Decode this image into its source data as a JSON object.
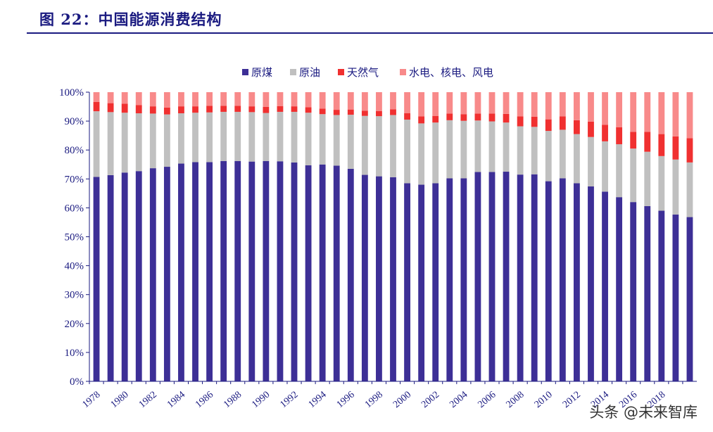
{
  "header": {
    "title": "图 22：中国能源消费结构"
  },
  "watermark": "头条 @未来智库",
  "chart_data": {
    "type": "bar",
    "stacked": true,
    "title": "",
    "xlabel": "",
    "ylabel": "",
    "ylim": [
      0,
      100
    ],
    "y_ticks": [
      "0%",
      "10%",
      "20%",
      "30%",
      "40%",
      "50%",
      "60%",
      "70%",
      "80%",
      "90%",
      "100%"
    ],
    "x_ticks": [
      "1978",
      "1980",
      "1982",
      "1984",
      "1986",
      "1988",
      "1990",
      "1992",
      "1994",
      "1996",
      "1998",
      "2000",
      "2002",
      "2004",
      "2006",
      "2008",
      "2010",
      "2012",
      "2014",
      "2016",
      "2018"
    ],
    "legend_position": "top",
    "categories": [
      "1978",
      "1979",
      "1980",
      "1981",
      "1982",
      "1983",
      "1984",
      "1985",
      "1986",
      "1987",
      "1988",
      "1989",
      "1990",
      "1991",
      "1992",
      "1993",
      "1994",
      "1995",
      "1996",
      "1997",
      "1998",
      "1999",
      "2000",
      "2001",
      "2002",
      "2003",
      "2004",
      "2005",
      "2006",
      "2007",
      "2008",
      "2009",
      "2010",
      "2011",
      "2012",
      "2013",
      "2014",
      "2015",
      "2016",
      "2017",
      "2018",
      "2019",
      "2020"
    ],
    "series": [
      {
        "name": "原煤",
        "color": "#3d2f96",
        "values": [
          70.7,
          71.3,
          72.2,
          72.7,
          73.7,
          74.2,
          75.3,
          75.8,
          75.8,
          76.2,
          76.2,
          76.0,
          76.2,
          76.1,
          75.7,
          74.7,
          75.0,
          74.6,
          73.5,
          71.4,
          70.9,
          70.6,
          68.5,
          68.0,
          68.5,
          70.2,
          70.2,
          72.4,
          72.4,
          72.5,
          71.5,
          71.6,
          69.2,
          70.2,
          68.5,
          67.4,
          65.6,
          63.7,
          62.0,
          60.6,
          59.0,
          57.7,
          56.8
        ]
      },
      {
        "name": "原油",
        "color": "#c0c0c0",
        "values": [
          22.7,
          21.8,
          20.7,
          20.0,
          18.9,
          18.1,
          17.4,
          17.1,
          17.2,
          17.0,
          17.0,
          17.1,
          16.6,
          17.1,
          17.5,
          18.2,
          17.4,
          17.5,
          18.7,
          20.4,
          20.8,
          21.5,
          22.0,
          21.2,
          21.0,
          20.1,
          19.9,
          17.8,
          17.5,
          17.0,
          16.7,
          16.4,
          17.4,
          16.8,
          17.0,
          17.1,
          17.4,
          18.3,
          18.5,
          18.8,
          18.9,
          19.0,
          18.9
        ]
      },
      {
        "name": "天然气",
        "color": "#f03030",
        "values": [
          3.2,
          3.1,
          3.1,
          2.8,
          2.5,
          2.4,
          2.4,
          2.2,
          2.3,
          2.1,
          2.1,
          2.0,
          2.1,
          2.0,
          1.9,
          1.9,
          1.9,
          1.8,
          1.8,
          1.8,
          1.8,
          2.0,
          2.2,
          2.4,
          2.3,
          2.3,
          2.3,
          2.4,
          2.7,
          3.0,
          3.4,
          3.5,
          4.0,
          4.6,
          4.8,
          5.3,
          5.7,
          5.9,
          5.8,
          6.9,
          7.6,
          8.0,
          8.4
        ]
      },
      {
        "name": "水电、核电、风电",
        "color": "#f88a8a",
        "values": [
          3.4,
          3.8,
          4.0,
          4.5,
          4.9,
          5.3,
          4.9,
          4.9,
          4.7,
          4.7,
          4.7,
          4.9,
          5.1,
          4.8,
          4.9,
          5.2,
          5.7,
          6.1,
          6.0,
          6.4,
          6.5,
          5.9,
          7.3,
          8.4,
          8.2,
          7.4,
          7.6,
          7.4,
          7.4,
          7.5,
          8.4,
          8.5,
          9.4,
          8.4,
          9.7,
          10.2,
          11.3,
          12.1,
          13.7,
          13.7,
          14.5,
          15.3,
          15.9
        ]
      }
    ]
  }
}
